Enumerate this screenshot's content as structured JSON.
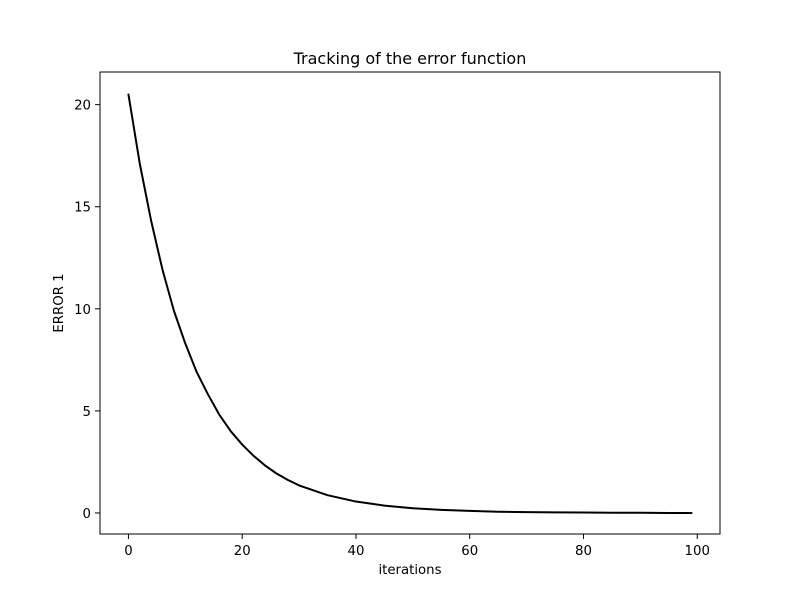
{
  "chart_data": {
    "type": "line",
    "title": "Tracking of the error function",
    "xlabel": "iterations",
    "ylabel": "ERROR 1",
    "xlim": [
      -5,
      104
    ],
    "ylim": [
      -1.03,
      21.6
    ],
    "x_ticks": [
      0,
      20,
      40,
      60,
      80,
      100
    ],
    "y_ticks": [
      0,
      5,
      10,
      15,
      20
    ],
    "x_tick_labels": [
      "0",
      "20",
      "40",
      "60",
      "80",
      "100"
    ],
    "y_tick_labels": [
      "0",
      "5",
      "10",
      "15",
      "20"
    ],
    "grid": false,
    "legend": "none",
    "series": [
      {
        "color": "#000000",
        "x": [
          0,
          2,
          4,
          6,
          8,
          10,
          12,
          14,
          16,
          18,
          20,
          22,
          24,
          26,
          28,
          30,
          35,
          40,
          45,
          50,
          55,
          60,
          65,
          70,
          75,
          80,
          85,
          90,
          95,
          99
        ],
        "y": [
          20.5,
          17.1,
          14.3,
          11.9,
          9.9,
          8.3,
          6.9,
          5.8,
          4.8,
          4.0,
          3.35,
          2.8,
          2.33,
          1.94,
          1.62,
          1.35,
          0.87,
          0.56,
          0.36,
          0.23,
          0.15,
          0.1,
          0.06,
          0.04,
          0.03,
          0.02,
          0.01,
          0.01,
          0.0,
          0.0
        ]
      }
    ]
  }
}
